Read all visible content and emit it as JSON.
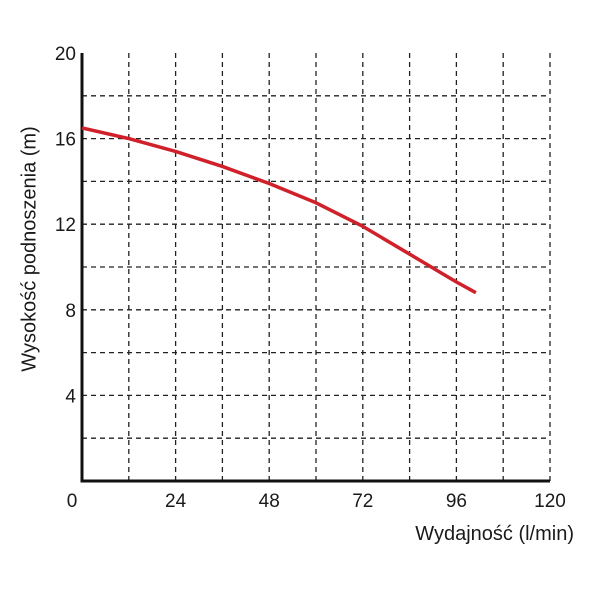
{
  "chart_data": {
    "type": "line",
    "xlabel": "Wydajność (l/min)",
    "ylabel": "Wysokość podnoszenia (m)",
    "xlim": [
      0,
      120
    ],
    "ylim": [
      0,
      20
    ],
    "x_ticks": [
      0,
      24,
      48,
      72,
      96,
      120
    ],
    "x_tick_labels": [
      "0",
      "24",
      "48",
      "72",
      "96",
      "120"
    ],
    "y_ticks": [
      4,
      8,
      12,
      16,
      20
    ],
    "y_tick_labels": [
      "4",
      "8",
      "12",
      "16",
      "20"
    ],
    "grid": true,
    "grid_style": "dashed",
    "series": [
      {
        "color": "#d0202a",
        "x": [
          0,
          12,
          24,
          36,
          48,
          60,
          72,
          84,
          96,
          101
        ],
        "y": [
          16.5,
          16.0,
          15.4,
          14.7,
          13.9,
          13.0,
          11.9,
          10.6,
          9.3,
          8.8
        ]
      }
    ]
  }
}
